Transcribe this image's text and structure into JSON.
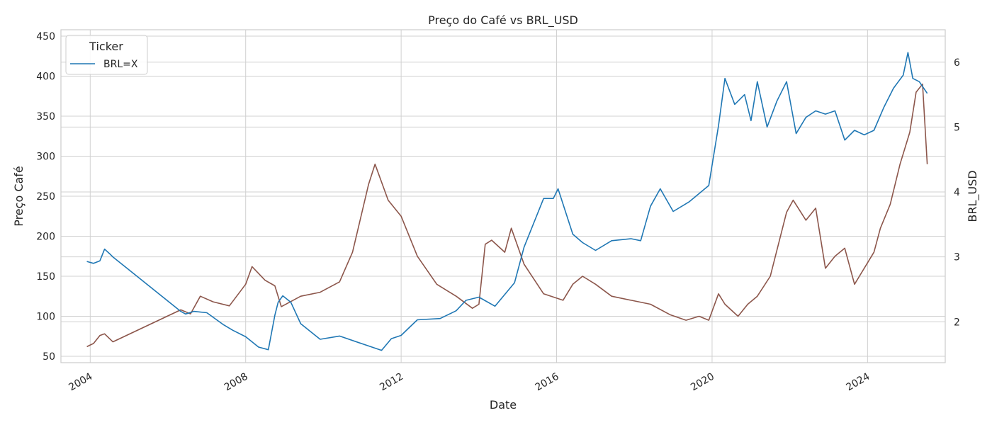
{
  "chart_data": {
    "type": "line",
    "title": "Preço do Café vs BRL_USD",
    "xlabel": "Date",
    "ylabel_left": "Preço Café",
    "ylabel_right": "BRL_USD",
    "xlim": [
      "2003-04-01",
      "2025-12-31"
    ],
    "ylim_left": [
      42,
      458
    ],
    "ylim_right": [
      1.37,
      6.5
    ],
    "x_ticks": [
      "2004",
      "2008",
      "2012",
      "2016",
      "2020",
      "2024"
    ],
    "y_ticks_left": [
      50,
      100,
      150,
      200,
      250,
      300,
      350,
      400,
      450
    ],
    "y_ticks_right": [
      2,
      3,
      4,
      5,
      6
    ],
    "grid": true,
    "legend": {
      "title": "Ticker",
      "position": "top-left",
      "entries": [
        "BRL=X"
      ]
    },
    "colors": {
      "coffee": "#8c564b",
      "brl": "#1f77b4",
      "grid": "#d0d0d0",
      "frame": "#cccccc"
    },
    "series": [
      {
        "name": "BRL=X",
        "axis": "right",
        "x": [
          "2003-12-01",
          "2004-02-01",
          "2004-04-01",
          "2004-05-15",
          "2004-07-01",
          "2004-08-01",
          "2006-05-01",
          "2006-06-15",
          "2006-09-01",
          "2007-01-01",
          "2007-06-01",
          "2007-09-01",
          "2008-01-01",
          "2008-05-01",
          "2008-08-01",
          "2008-10-01",
          "2008-11-01",
          "2008-12-15",
          "2009-03-01",
          "2009-06-01",
          "2009-12-01",
          "2010-06-01",
          "2011-01-01",
          "2011-07-01",
          "2011-10-01",
          "2012-01-01",
          "2012-06-01",
          "2013-01-01",
          "2013-06-01",
          "2013-09-01",
          "2014-01-01",
          "2014-06-01",
          "2014-12-01",
          "2015-03-01",
          "2015-09-01",
          "2015-12-01",
          "2016-01-15",
          "2016-06-01",
          "2016-09-01",
          "2017-01-01",
          "2017-06-01",
          "2017-12-01",
          "2018-03-01",
          "2018-06-01",
          "2018-09-01",
          "2019-01-01",
          "2019-06-01",
          "2019-12-01",
          "2020-03-01",
          "2020-05-01",
          "2020-08-01",
          "2020-11-01",
          "2021-01-01",
          "2021-03-01",
          "2021-06-01",
          "2021-09-01",
          "2021-12-01",
          "2022-03-01",
          "2022-06-01",
          "2022-09-01",
          "2022-12-01",
          "2023-03-01",
          "2023-06-01",
          "2023-09-01",
          "2023-12-01",
          "2024-03-01",
          "2024-06-01",
          "2024-09-01",
          "2024-12-01",
          "2025-01-15",
          "2025-03-01",
          "2025-05-01",
          "2025-07-15"
        ],
        "values": [
          2.93,
          2.9,
          2.94,
          3.12,
          3.05,
          3.0,
          2.16,
          2.12,
          2.16,
          2.14,
          1.96,
          1.87,
          1.77,
          1.61,
          1.57,
          2.1,
          2.3,
          2.4,
          2.3,
          1.97,
          1.73,
          1.78,
          1.66,
          1.56,
          1.74,
          1.79,
          2.03,
          2.05,
          2.17,
          2.33,
          2.38,
          2.24,
          2.6,
          3.15,
          3.9,
          3.9,
          4.05,
          3.35,
          3.22,
          3.1,
          3.25,
          3.28,
          3.25,
          3.78,
          4.05,
          3.7,
          3.85,
          4.1,
          5.02,
          5.75,
          5.35,
          5.5,
          5.1,
          5.7,
          5.0,
          5.4,
          5.7,
          4.9,
          5.15,
          5.25,
          5.2,
          5.25,
          4.8,
          4.95,
          4.88,
          4.95,
          5.3,
          5.6,
          5.8,
          6.15,
          5.75,
          5.7,
          5.52
        ]
      },
      {
        "name": "",
        "axis": "left",
        "x": [
          "2003-12-01",
          "2004-02-01",
          "2004-04-01",
          "2004-05-15",
          "2004-07-01",
          "2004-08-01",
          "2006-05-01",
          "2006-08-01",
          "2006-11-01",
          "2007-03-01",
          "2007-08-01",
          "2008-01-01",
          "2008-03-01",
          "2008-07-01",
          "2008-10-01",
          "2008-12-01",
          "2009-06-01",
          "2009-12-01",
          "2010-06-01",
          "2010-10-01",
          "2011-03-01",
          "2011-05-01",
          "2011-09-01",
          "2012-01-01",
          "2012-06-01",
          "2012-12-01",
          "2013-06-01",
          "2013-11-01",
          "2014-01-01",
          "2014-03-01",
          "2014-05-01",
          "2014-09-01",
          "2014-11-01",
          "2015-03-01",
          "2015-09-01",
          "2016-03-01",
          "2016-06-01",
          "2016-09-01",
          "2017-01-01",
          "2017-06-01",
          "2017-12-01",
          "2018-06-01",
          "2018-12-01",
          "2019-05-01",
          "2019-09-01",
          "2019-12-01",
          "2020-03-01",
          "2020-05-01",
          "2020-09-01",
          "2020-12-01",
          "2021-03-01",
          "2021-07-01",
          "2021-12-01",
          "2022-02-01",
          "2022-06-01",
          "2022-09-01",
          "2022-12-01",
          "2023-03-01",
          "2023-06-01",
          "2023-09-01",
          "2023-12-01",
          "2024-03-01",
          "2024-05-01",
          "2024-08-01",
          "2024-11-01",
          "2025-02-01",
          "2025-04-01",
          "2025-06-01",
          "2025-07-15"
        ],
        "values": [
          62,
          66,
          76,
          78,
          72,
          68,
          108,
          103,
          125,
          118,
          113,
          140,
          162,
          145,
          138,
          112,
          125,
          130,
          143,
          180,
          265,
          290,
          245,
          225,
          175,
          140,
          125,
          110,
          115,
          190,
          195,
          180,
          210,
          165,
          128,
          120,
          140,
          150,
          140,
          125,
          120,
          115,
          102,
          95,
          100,
          95,
          128,
          115,
          100,
          115,
          125,
          150,
          230,
          245,
          220,
          235,
          160,
          175,
          185,
          140,
          160,
          180,
          210,
          240,
          290,
          330,
          380,
          390,
          290
        ]
      }
    ]
  }
}
